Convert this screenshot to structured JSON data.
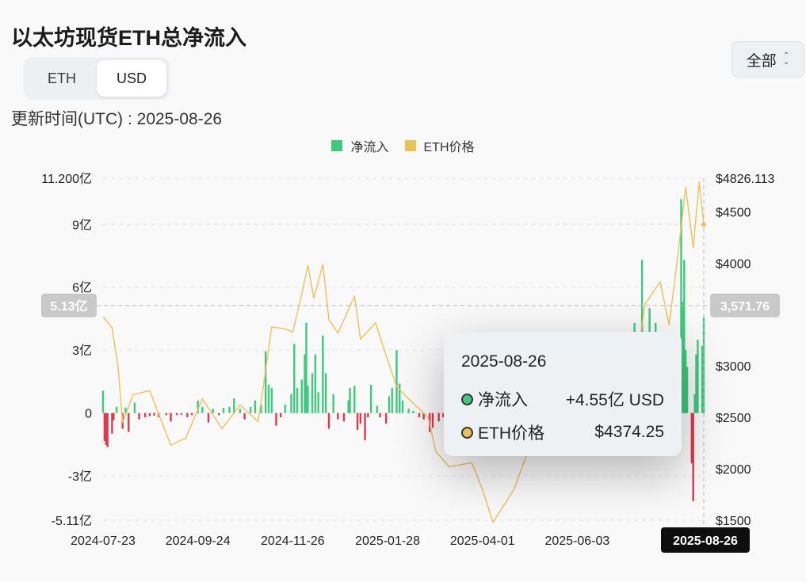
{
  "page": {
    "title": "以太坊现货ETH总净流入",
    "currency_tabs": [
      {
        "label": "ETH",
        "active": false
      },
      {
        "label": "USD",
        "active": true
      }
    ],
    "updated": "更新时间(UTC) : 2025-08-26",
    "range_select": {
      "label": "全部"
    }
  },
  "colors": {
    "inflow": "#3ec97d",
    "outflow": "#e0384c",
    "price": "#eec058"
  },
  "tooltip": {
    "date": "2025-08-26",
    "rows": [
      {
        "label": "净流入",
        "value": "+4.55亿 USD",
        "color": "#3ec97d"
      },
      {
        "label": "ETH价格",
        "value": "$4374.25",
        "color": "#eec058"
      }
    ]
  },
  "crosshair": {
    "y_left": "5.13亿",
    "y_right": "3,571.76",
    "x": "2025-08-26"
  },
  "chart_data": {
    "type": "bar",
    "title": "以太坊现货ETH总净流入",
    "legend": [
      {
        "name": "净流入",
        "color": "#3ec97d"
      },
      {
        "name": "ETH价格",
        "color": "#eec058"
      }
    ],
    "legend_position": "top-center",
    "x_ticks": [
      "2024-07-23",
      "2024-09-24",
      "2024-11-26",
      "2025-01-28",
      "2025-04-01",
      "2025-06-03",
      "2025-08-26"
    ],
    "y_left": {
      "unit": "亿 USD",
      "range": [
        -5.11,
        11.2
      ],
      "ticks": [
        {
          "v": 11.2,
          "label": "11.200亿"
        },
        {
          "v": 9,
          "label": "9亿"
        },
        {
          "v": 6,
          "label": "6亿"
        },
        {
          "v": 3,
          "label": "3亿"
        },
        {
          "v": 0,
          "label": "0"
        },
        {
          "v": -3,
          "label": "-3亿"
        },
        {
          "v": -5.11,
          "label": "-5.11亿"
        }
      ]
    },
    "y_right": {
      "unit": "USD",
      "range": [
        1500,
        4826.113
      ],
      "ticks": [
        {
          "v": 4826.113,
          "label": "$4826.113"
        },
        {
          "v": 4500,
          "label": "$4500"
        },
        {
          "v": 4000,
          "label": "$4000"
        },
        {
          "v": 3000,
          "label": "$3000"
        },
        {
          "v": 2500,
          "label": "$2500"
        },
        {
          "v": 2000,
          "label": "$2000"
        },
        {
          "v": 1500,
          "label": "$1500"
        }
      ]
    },
    "grid": true,
    "series": [
      {
        "name": "净流入",
        "axis": "left",
        "kind": "bar",
        "points": [
          [
            "2024-07-23",
            1.07
          ],
          [
            "2024-07-24",
            -1.33
          ],
          [
            "2024-07-25",
            -1.52
          ],
          [
            "2024-07-26",
            -1.62
          ],
          [
            "2024-07-29",
            -0.98
          ],
          [
            "2024-07-30",
            -0.34
          ],
          [
            "2024-08-01",
            0.3
          ],
          [
            "2024-08-05",
            -0.75
          ],
          [
            "2024-08-07",
            0.26
          ],
          [
            "2024-08-09",
            -0.9
          ],
          [
            "2024-08-13",
            0.5
          ],
          [
            "2024-08-16",
            -0.3
          ],
          [
            "2024-08-20",
            -0.2
          ],
          [
            "2024-08-23",
            -0.15
          ],
          [
            "2024-08-26",
            -0.12
          ],
          [
            "2024-08-29",
            -0.2
          ],
          [
            "2024-09-03",
            -0.1
          ],
          [
            "2024-09-06",
            -0.4
          ],
          [
            "2024-09-10",
            -0.1
          ],
          [
            "2024-09-13",
            -0.08
          ],
          [
            "2024-09-17",
            -0.2
          ],
          [
            "2024-09-20",
            -0.1
          ],
          [
            "2024-09-24",
            0.6
          ],
          [
            "2024-09-27",
            0.3
          ],
          [
            "2024-10-01",
            -0.45
          ],
          [
            "2024-10-04",
            0.2
          ],
          [
            "2024-10-08",
            -0.1
          ],
          [
            "2024-10-11",
            0.25
          ],
          [
            "2024-10-15",
            0.3
          ],
          [
            "2024-10-18",
            0.7
          ],
          [
            "2024-10-22",
            0.2
          ],
          [
            "2024-10-25",
            -0.3
          ],
          [
            "2024-10-29",
            0.3
          ],
          [
            "2024-11-01",
            0.6
          ],
          [
            "2024-11-05",
            0.4
          ],
          [
            "2024-11-08",
            2.95
          ],
          [
            "2024-11-10",
            1.35
          ],
          [
            "2024-11-12",
            1.2
          ],
          [
            "2024-11-15",
            -0.6
          ],
          [
            "2024-11-18",
            -0.2
          ],
          [
            "2024-11-21",
            0.4
          ],
          [
            "2024-11-25",
            0.9
          ],
          [
            "2024-11-27",
            3.3
          ],
          [
            "2024-11-29",
            1.2
          ],
          [
            "2024-12-02",
            1.6
          ],
          [
            "2024-12-04",
            2.8
          ],
          [
            "2024-12-05",
            4.3
          ],
          [
            "2024-12-06",
            1.3
          ],
          [
            "2024-12-09",
            1.9
          ],
          [
            "2024-12-11",
            2.8
          ],
          [
            "2024-12-13",
            1.0
          ],
          [
            "2024-12-16",
            3.7
          ],
          [
            "2024-12-18",
            1.9
          ],
          [
            "2024-12-20",
            -0.75
          ],
          [
            "2024-12-23",
            0.9
          ],
          [
            "2024-12-26",
            -0.3
          ],
          [
            "2024-12-30",
            -0.4
          ],
          [
            "2025-01-02",
            0.6
          ],
          [
            "2025-01-03",
            1.2
          ],
          [
            "2025-01-06",
            1.3
          ],
          [
            "2025-01-08",
            -0.8
          ],
          [
            "2025-01-10",
            -0.5
          ],
          [
            "2025-01-13",
            -1.3
          ],
          [
            "2025-01-15",
            -0.2
          ],
          [
            "2025-01-17",
            1.35
          ],
          [
            "2025-01-21",
            0.35
          ],
          [
            "2025-01-23",
            -0.2
          ],
          [
            "2025-01-27",
            -0.5
          ],
          [
            "2025-01-29",
            0.8
          ],
          [
            "2025-01-31",
            1.2
          ],
          [
            "2025-02-03",
            3.0
          ],
          [
            "2025-02-05",
            1.4
          ],
          [
            "2025-02-07",
            0.6
          ],
          [
            "2025-02-11",
            0.2
          ],
          [
            "2025-02-14",
            0.1
          ],
          [
            "2025-02-18",
            -0.2
          ],
          [
            "2025-02-21",
            -0.3
          ],
          [
            "2025-02-25",
            -0.9
          ],
          [
            "2025-02-27",
            -0.7
          ],
          [
            "2025-03-03",
            -0.4
          ],
          [
            "2025-03-06",
            -0.2
          ],
          [
            "2025-03-10",
            -0.3
          ],
          [
            "2025-07-08",
            2.1
          ],
          [
            "2025-07-10",
            3.6
          ],
          [
            "2025-07-11",
            4.3
          ],
          [
            "2025-07-14",
            3.8
          ],
          [
            "2025-07-16",
            7.3
          ],
          [
            "2025-07-17",
            2.8
          ],
          [
            "2025-07-18",
            3.0
          ],
          [
            "2025-07-21",
            5.0
          ],
          [
            "2025-07-22",
            3.1
          ],
          [
            "2025-07-23",
            2.6
          ],
          [
            "2025-07-24",
            2.2
          ],
          [
            "2025-07-25",
            4.3
          ],
          [
            "2025-07-28",
            1.8
          ],
          [
            "2025-07-31",
            1.4
          ],
          [
            "2025-08-05",
            2.2
          ],
          [
            "2025-08-06",
            2.7
          ],
          [
            "2025-08-08",
            3.6
          ],
          [
            "2025-08-11",
            10.2
          ],
          [
            "2025-08-12",
            5.3
          ],
          [
            "2025-08-13",
            7.3
          ],
          [
            "2025-08-14",
            3.0
          ],
          [
            "2025-08-15",
            2.2
          ],
          [
            "2025-08-18",
            -2.4
          ],
          [
            "2025-08-19",
            -4.2
          ],
          [
            "2025-08-20",
            0.9
          ],
          [
            "2025-08-21",
            2.8
          ],
          [
            "2025-08-22",
            3.5
          ],
          [
            "2025-08-25",
            3.2
          ],
          [
            "2025-08-26",
            4.55
          ]
        ]
      },
      {
        "name": "ETH价格",
        "axis": "right",
        "kind": "line",
        "points": [
          [
            "2024-07-23",
            3480
          ],
          [
            "2024-07-29",
            3370
          ],
          [
            "2024-08-02",
            2990
          ],
          [
            "2024-08-05",
            2450
          ],
          [
            "2024-08-12",
            2720
          ],
          [
            "2024-08-23",
            2760
          ],
          [
            "2024-09-06",
            2230
          ],
          [
            "2024-09-16",
            2300
          ],
          [
            "2024-09-27",
            2680
          ],
          [
            "2024-10-10",
            2390
          ],
          [
            "2024-10-22",
            2620
          ],
          [
            "2024-11-03",
            2460
          ],
          [
            "2024-11-08",
            2960
          ],
          [
            "2024-11-12",
            3380
          ],
          [
            "2024-11-21",
            3360
          ],
          [
            "2024-11-26",
            3330
          ],
          [
            "2024-12-02",
            3700
          ],
          [
            "2024-12-06",
            3980
          ],
          [
            "2024-12-10",
            3660
          ],
          [
            "2024-12-16",
            3990
          ],
          [
            "2024-12-20",
            3450
          ],
          [
            "2024-12-26",
            3320
          ],
          [
            "2025-01-06",
            3680
          ],
          [
            "2025-01-10",
            3260
          ],
          [
            "2025-01-20",
            3420
          ],
          [
            "2025-01-27",
            3100
          ],
          [
            "2025-02-03",
            2800
          ],
          [
            "2025-02-11",
            2680
          ],
          [
            "2025-02-24",
            2500
          ],
          [
            "2025-03-01",
            2170
          ],
          [
            "2025-03-10",
            2020
          ],
          [
            "2025-03-25",
            2060
          ],
          [
            "2025-04-01",
            1800
          ],
          [
            "2025-04-08",
            1480
          ],
          [
            "2025-04-22",
            1800
          ],
          [
            "2025-05-10",
            2520
          ],
          [
            "2025-05-25",
            2640
          ],
          [
            "2025-06-10",
            2780
          ],
          [
            "2025-06-22",
            2230
          ],
          [
            "2025-07-01",
            2430
          ],
          [
            "2025-07-11",
            2900
          ],
          [
            "2025-07-18",
            3600
          ],
          [
            "2025-07-28",
            3820
          ],
          [
            "2025-08-03",
            3400
          ],
          [
            "2025-08-09",
            4100
          ],
          [
            "2025-08-14",
            4740
          ],
          [
            "2025-08-19",
            4150
          ],
          [
            "2025-08-23",
            4790
          ],
          [
            "2025-08-26",
            4374.25
          ]
        ]
      }
    ]
  }
}
